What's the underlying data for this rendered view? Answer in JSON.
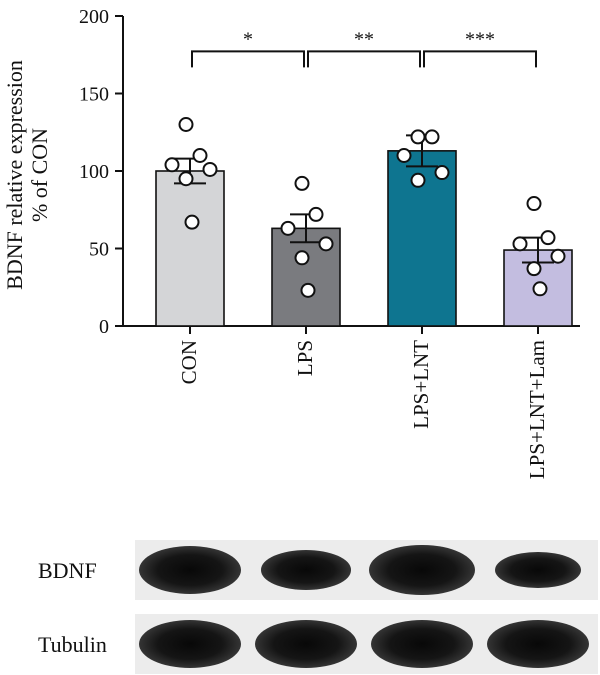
{
  "chart_data": {
    "type": "bar",
    "categories": [
      "CON",
      "LPS",
      "LPS+LNT",
      "LPS+LNT+Lam"
    ],
    "values": [
      100,
      63,
      113,
      49
    ],
    "sem": [
      8,
      9,
      10,
      8
    ],
    "points": [
      [
        130,
        110,
        104,
        101,
        95,
        67
      ],
      [
        92,
        72,
        63,
        53,
        44,
        23
      ],
      [
        122,
        122,
        110,
        99,
        94
      ],
      [
        79,
        57,
        53,
        45,
        37,
        24
      ]
    ],
    "colors": [
      "#d4d5d7",
      "#7a7b7f",
      "#0e7590",
      "#c3bde0"
    ],
    "ylabel": "BDNF relative expression\n% of CON",
    "ylim": [
      0,
      200
    ],
    "yticks": [
      0,
      50,
      100,
      150,
      200
    ],
    "significance": [
      {
        "from": 0,
        "to": 1,
        "label": "*",
        "y": 172
      },
      {
        "from": 1,
        "to": 2,
        "label": "**",
        "y": 172
      },
      {
        "from": 2,
        "to": 3,
        "label": "***",
        "y": 172
      }
    ],
    "grid": false
  },
  "blot": {
    "rows": [
      {
        "label": "BDNF",
        "band_intensity": [
          1.0,
          0.63,
          1.13,
          0.49
        ]
      },
      {
        "label": "Tubulin",
        "band_intensity": [
          1.0,
          1.0,
          1.0,
          1.0
        ]
      }
    ]
  }
}
